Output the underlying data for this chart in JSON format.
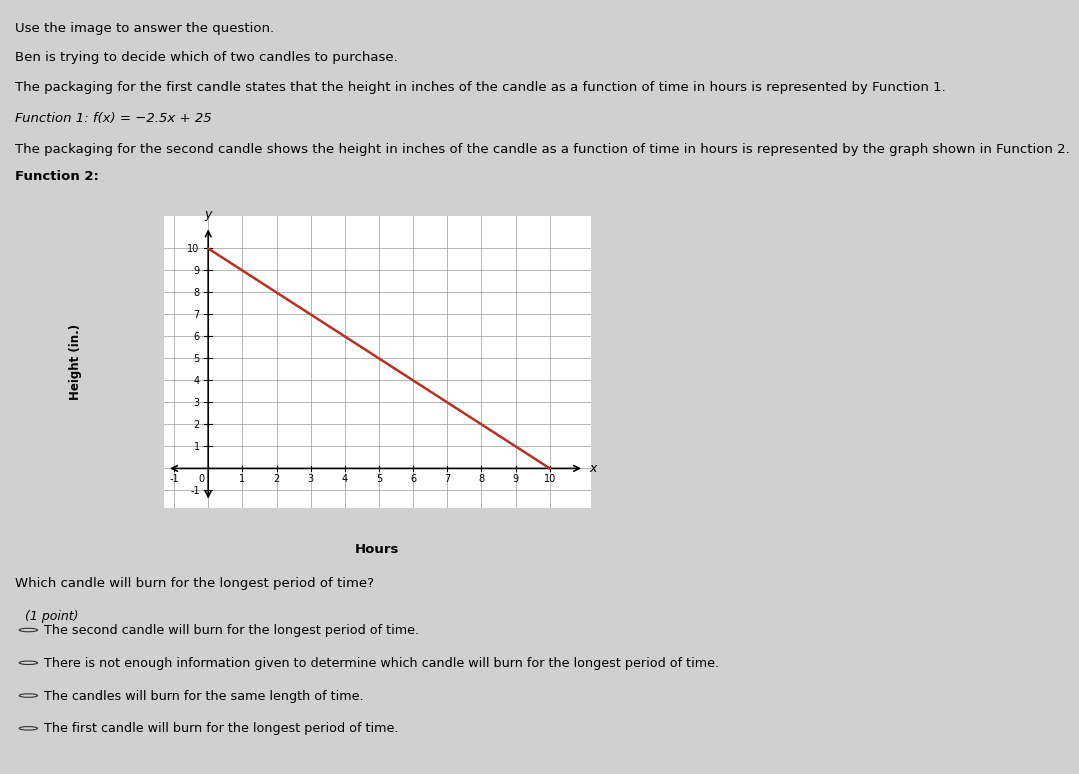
{
  "page_bg": "#d0d0d0",
  "content_bg": "#e8e8e8",
  "text_lines": [
    "Use the image to answer the question.",
    "Ben is trying to decide which of two candles to purchase.",
    "The packaging for the first candle states that the height in inches of the candle as a function of time in hours is represented by Function 1.",
    "Function 1: f(x) = −2.5x + 25",
    "The packaging for the second candle shows the height in inches of the candle as a function of time in hours is represented by the graph shown in Function 2.",
    "Function 2:"
  ],
  "graph": {
    "xlim": [
      -1.3,
      11.2
    ],
    "ylim": [
      -1.8,
      11.5
    ],
    "line_x": [
      0,
      10
    ],
    "line_y": [
      10,
      0
    ],
    "line_color": "#b83020",
    "line_width": 1.8,
    "grid_color": "#999999",
    "grid_linewidth": 0.5,
    "bg_color": "#ffffff",
    "xlabel": "Hours",
    "ylabel": "Height (in.)"
  },
  "question": "Which candle will burn for the longest period of time?",
  "point_label": "(1 point)",
  "choices": [
    "The second candle will burn for the longest period of time.",
    "There is not enough information given to determine which candle will burn for the longest period of time.",
    "The candles will burn for the same length of time.",
    "The first candle will burn for the longest period of time."
  ]
}
